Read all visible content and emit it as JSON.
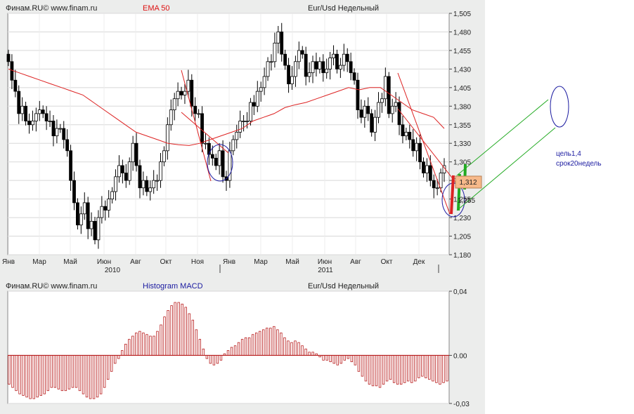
{
  "header": {
    "source": "Финам.RU©  www.finam.ru",
    "indicator_top": "EMA 50",
    "instrument": "Eur/Usd Недельный",
    "indicator_bottom": "Histogram MACD"
  },
  "annotations": {
    "target": "цель1,4",
    "term": "срок20недель",
    "price_tag": "1,312",
    "price_tag_low": "1,255"
  },
  "colors": {
    "ema": "#dd2222",
    "hist": "#b81c1c",
    "candle_up": "#ffffff",
    "candle_down": "#000000",
    "channel_red": "#dd2222",
    "channel_green": "#22aa22",
    "circle": "#1a1aa0",
    "price_tag_bg": "#f7b98a"
  },
  "chart_data": [
    {
      "type": "candlestick",
      "title": "Eur/Usd Недельный",
      "ylim": [
        1.18,
        1.505
      ],
      "y_ticks": [
        "1,505",
        "1,480",
        "1,455",
        "1,430",
        "1,405",
        "1,380",
        "1,355",
        "1,330",
        "1,305",
        "1,280",
        "1,255",
        "1,230",
        "1,205",
        "1,180"
      ],
      "x_ticks": [
        "Янв",
        "Мар",
        "Май",
        "Июн",
        "Авг",
        "Окт",
        "Ноя",
        "Янв",
        "Мар",
        "Май",
        "Июн",
        "Авг",
        "Окт",
        "Дек"
      ],
      "year_labels": [
        "2010",
        "2011"
      ],
      "closes": [
        1.44,
        1.415,
        1.4,
        1.37,
        1.38,
        1.36,
        1.355,
        1.36,
        1.37,
        1.375,
        1.37,
        1.36,
        1.36,
        1.34,
        1.35,
        1.35,
        1.335,
        1.32,
        1.28,
        1.25,
        1.22,
        1.235,
        1.25,
        1.215,
        1.225,
        1.2,
        1.23,
        1.245,
        1.24,
        1.255,
        1.265,
        1.285,
        1.3,
        1.29,
        1.28,
        1.305,
        1.33,
        1.3,
        1.27,
        1.28,
        1.265,
        1.27,
        1.28,
        1.28,
        1.305,
        1.32,
        1.355,
        1.375,
        1.39,
        1.4,
        1.395,
        1.4,
        1.415,
        1.38,
        1.37,
        1.37,
        1.33,
        1.33,
        1.315,
        1.31,
        1.3,
        1.32,
        1.285,
        1.28,
        1.32,
        1.335,
        1.345,
        1.36,
        1.36,
        1.36,
        1.385,
        1.38,
        1.4,
        1.405,
        1.42,
        1.44,
        1.44,
        1.465,
        1.48,
        1.45,
        1.435,
        1.41,
        1.42,
        1.44,
        1.455,
        1.45,
        1.42,
        1.425,
        1.44,
        1.43,
        1.44,
        1.425,
        1.43,
        1.445,
        1.45,
        1.43,
        1.435,
        1.45,
        1.44,
        1.425,
        1.415,
        1.375,
        1.365,
        1.38,
        1.37,
        1.345,
        1.365,
        1.385,
        1.39,
        1.42,
        1.37,
        1.38,
        1.385,
        1.355,
        1.34,
        1.345,
        1.335,
        1.32,
        1.33,
        1.305,
        1.29,
        1.3,
        1.28,
        1.27,
        1.27,
        1.29,
        1.3
      ],
      "ema": [
        1.43,
        1.425,
        1.42,
        1.415,
        1.41,
        1.405,
        1.4,
        1.395,
        1.385,
        1.375,
        1.365,
        1.355,
        1.345,
        1.34,
        1.335,
        1.33,
        1.328,
        1.327,
        1.33,
        1.335,
        1.34,
        1.345,
        1.35,
        1.36,
        1.365,
        1.37,
        1.378,
        1.382,
        1.385,
        1.39,
        1.395,
        1.4,
        1.405,
        1.402,
        1.405,
        1.405,
        1.395,
        1.385,
        1.375,
        1.37,
        1.365,
        1.35
      ],
      "ema_label": "EMA 50"
    },
    {
      "type": "bar",
      "title": "Histogram MACD",
      "ylim": [
        -0.03,
        0.04
      ],
      "y_ticks": [
        "0,04",
        "0.00",
        "-0,03"
      ],
      "values": [
        -0.018,
        -0.02,
        -0.022,
        -0.024,
        -0.025,
        -0.026,
        -0.027,
        -0.027,
        -0.026,
        -0.025,
        -0.024,
        -0.022,
        -0.02,
        -0.02,
        -0.021,
        -0.022,
        -0.022,
        -0.021,
        -0.02,
        -0.02,
        -0.022,
        -0.024,
        -0.026,
        -0.027,
        -0.027,
        -0.026,
        -0.024,
        -0.02,
        -0.015,
        -0.01,
        -0.005,
        -0.002,
        0.003,
        0.007,
        0.01,
        0.012,
        0.014,
        0.015,
        0.014,
        0.013,
        0.012,
        0.012,
        0.015,
        0.019,
        0.024,
        0.028,
        0.031,
        0.033,
        0.033,
        0.032,
        0.03,
        0.026,
        0.022,
        0.016,
        0.01,
        0.004,
        -0.002,
        -0.005,
        -0.006,
        -0.005,
        -0.003,
        0.001,
        0.003,
        0.005,
        0.006,
        0.008,
        0.01,
        0.011,
        0.011,
        0.013,
        0.014,
        0.015,
        0.016,
        0.017,
        0.017,
        0.018,
        0.016,
        0.014,
        0.011,
        0.009,
        0.008,
        0.009,
        0.008,
        0.006,
        0.004,
        0.002,
        0.002,
        0.001,
        -0.001,
        -0.003,
        -0.003,
        -0.004,
        -0.005,
        -0.006,
        -0.005,
        -0.003,
        -0.002,
        -0.004,
        -0.006,
        -0.01,
        -0.013,
        -0.016,
        -0.018,
        -0.019,
        -0.019,
        -0.02,
        -0.018,
        -0.016,
        -0.015,
        -0.017,
        -0.018,
        -0.018,
        -0.017,
        -0.016,
        -0.017,
        -0.016,
        -0.014,
        -0.013,
        -0.014,
        -0.015,
        -0.016,
        -0.017,
        -0.018,
        -0.017,
        -0.016
      ]
    }
  ]
}
